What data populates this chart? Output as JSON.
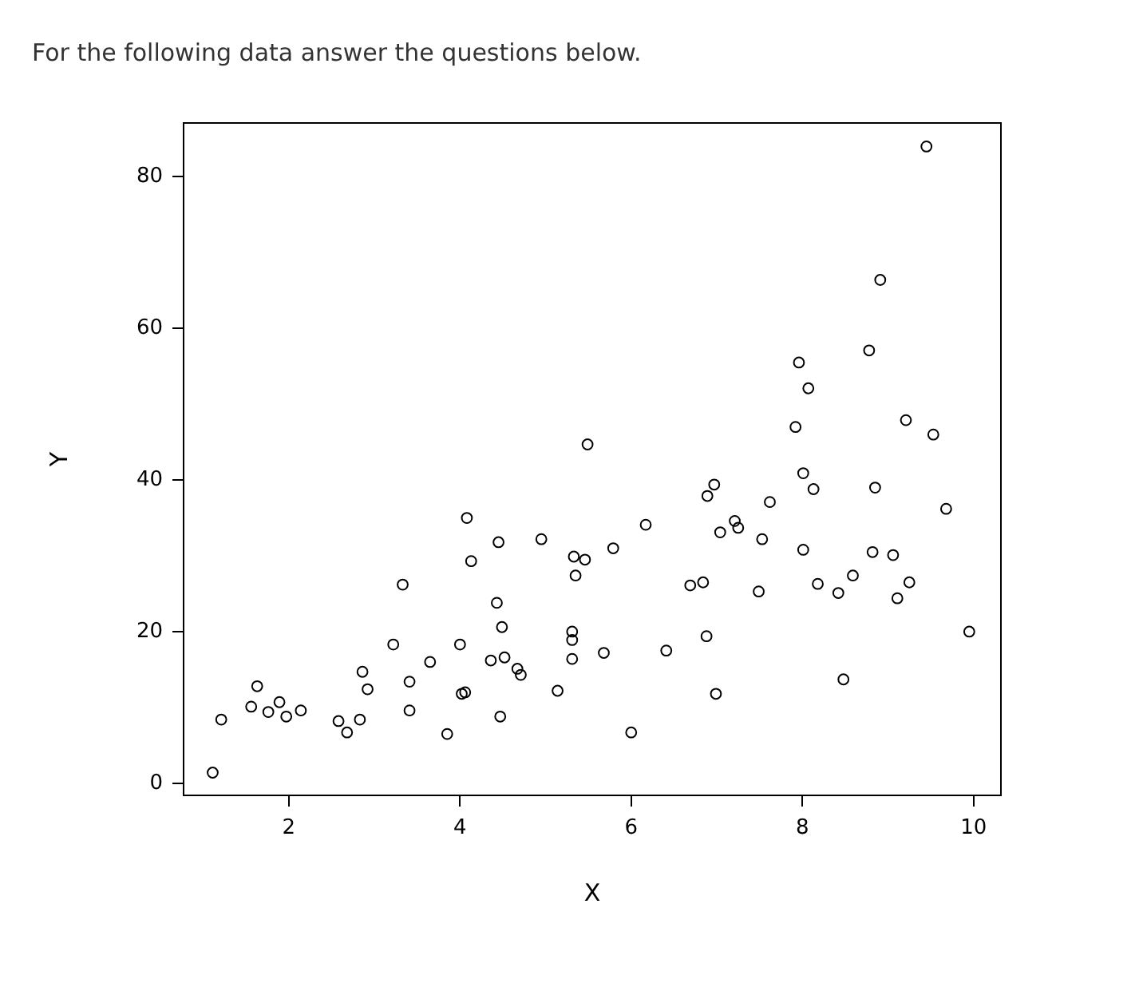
{
  "chart_data": {
    "type": "scatter",
    "title": "For the following data answer the questions below.",
    "xlabel": "X",
    "ylabel": "Y",
    "color": "#000000",
    "marker": "circle",
    "grid": false,
    "x": [
      1.11,
      1.21,
      1.56,
      1.63,
      1.76,
      1.89,
      1.97,
      2.14,
      2.58,
      2.68,
      2.83,
      2.86,
      2.92,
      3.22,
      3.33,
      3.41,
      3.41,
      3.65,
      3.85,
      4.0,
      4.02,
      4.06,
      4.08,
      4.13,
      4.36,
      4.43,
      4.45,
      4.49,
      4.47,
      4.52,
      4.67,
      4.71,
      4.95,
      5.14,
      5.31,
      5.31,
      5.31,
      5.33,
      5.35,
      5.46,
      5.49,
      5.68,
      5.79,
      6.0,
      6.17,
      6.41,
      6.69,
      6.84,
      6.88,
      6.89,
      6.97,
      6.99,
      7.04,
      7.21,
      7.25,
      7.49,
      7.53,
      7.62,
      7.92,
      7.96,
      8.01,
      8.01,
      8.07,
      8.13,
      8.18,
      8.42,
      8.48,
      8.59,
      8.78,
      8.82,
      8.85,
      8.91,
      9.06,
      9.11,
      9.21,
      9.25,
      9.45,
      9.53,
      9.68,
      9.95
    ],
    "values": [
      1.4,
      8.4,
      10.1,
      12.8,
      9.4,
      10.7,
      8.8,
      9.6,
      8.2,
      6.7,
      8.4,
      14.7,
      12.4,
      18.3,
      26.2,
      13.4,
      9.6,
      16.0,
      6.5,
      18.3,
      11.8,
      12.0,
      35.0,
      29.3,
      16.2,
      23.8,
      31.8,
      20.6,
      8.8,
      16.6,
      15.1,
      14.3,
      32.2,
      12.2,
      20.0,
      18.9,
      16.4,
      29.9,
      27.4,
      29.5,
      44.7,
      17.2,
      31.0,
      6.7,
      34.1,
      17.5,
      26.1,
      26.5,
      19.4,
      37.9,
      39.4,
      11.8,
      33.1,
      34.6,
      33.7,
      25.3,
      32.2,
      37.1,
      47.0,
      55.5,
      40.9,
      30.8,
      52.1,
      38.8,
      26.3,
      25.1,
      13.7,
      27.4,
      57.1,
      30.5,
      39.0,
      66.4,
      30.1,
      24.4,
      47.9,
      26.5,
      84.0,
      46.0,
      36.2,
      20.0
    ],
    "xlim": [
      0.77,
      10.32
    ],
    "ylim": [
      -1.6,
      87.1
    ],
    "xticks": [
      2,
      4,
      6,
      8,
      10
    ],
    "yticks": [
      0,
      20,
      40,
      60,
      80
    ]
  }
}
